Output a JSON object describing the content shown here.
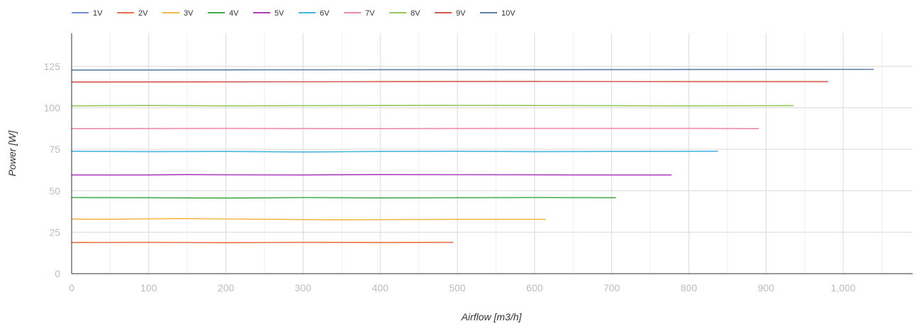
{
  "chart_data": {
    "type": "line",
    "xlabel": "Airflow [m3/h]",
    "ylabel": "Power [W]",
    "xlim": [
      0,
      1090
    ],
    "ylim": [
      0,
      145
    ],
    "x_ticks": [
      0,
      100,
      200,
      300,
      400,
      500,
      600,
      700,
      800,
      900,
      1000
    ],
    "x_tick_labels": [
      "0",
      "100",
      "200",
      "300",
      "400",
      "500",
      "600",
      "700",
      "800",
      "900",
      "1,000"
    ],
    "y_ticks": [
      0,
      25,
      50,
      75,
      100,
      125
    ],
    "y_tick_labels": [
      "0",
      "25",
      "50",
      "75",
      "100",
      "125"
    ],
    "x_minor_step": 50,
    "grid": true,
    "legend_position": "top-left",
    "series": [
      {
        "name": "1V",
        "color": "#6f8fd6",
        "x": [],
        "y": []
      },
      {
        "name": "2V",
        "color": "#e8714a",
        "x": [
          0,
          100,
          200,
          300,
          400,
          494
        ],
        "y": [
          18.8,
          18.9,
          18.7,
          18.9,
          18.8,
          18.9
        ]
      },
      {
        "name": "3V",
        "color": "#f7b84b",
        "x": [
          0,
          50,
          100,
          150,
          200,
          250,
          300,
          350,
          400,
          500,
          614
        ],
        "y": [
          32.9,
          32.8,
          33.1,
          33.2,
          33.0,
          32.8,
          32.6,
          32.5,
          32.6,
          32.7,
          32.7
        ]
      },
      {
        "name": "4V",
        "color": "#46ab4a",
        "x": [
          0,
          100,
          200,
          300,
          400,
          500,
          600,
          705
        ],
        "y": [
          45.9,
          45.8,
          45.6,
          45.9,
          45.7,
          45.8,
          45.9,
          45.8
        ]
      },
      {
        "name": "5V",
        "color": "#ad3fbf",
        "x": [
          0,
          100,
          150,
          200,
          300,
          400,
          500,
          600,
          700,
          777
        ],
        "y": [
          59.5,
          59.5,
          59.8,
          59.6,
          59.5,
          59.8,
          59.7,
          59.6,
          59.5,
          59.5
        ]
      },
      {
        "name": "6V",
        "color": "#49b5e3",
        "x": [
          0,
          100,
          200,
          300,
          400,
          500,
          600,
          700,
          837
        ],
        "y": [
          73.8,
          73.6,
          73.7,
          73.4,
          73.7,
          73.8,
          73.6,
          73.7,
          73.8
        ]
      },
      {
        "name": "7V",
        "color": "#ee8aa6",
        "x": [
          0,
          200,
          400,
          600,
          800,
          890
        ],
        "y": [
          87.5,
          87.6,
          87.5,
          87.6,
          87.6,
          87.5
        ]
      },
      {
        "name": "8V",
        "color": "#96c65a",
        "x": [
          0,
          100,
          200,
          300,
          400,
          500,
          600,
          700,
          800,
          935
        ],
        "y": [
          101.2,
          101.4,
          101.2,
          101.3,
          101.4,
          101.5,
          101.4,
          101.3,
          101.2,
          101.3
        ]
      },
      {
        "name": "9V",
        "color": "#d3584d",
        "x": [
          0,
          200,
          400,
          600,
          800,
          980
        ],
        "y": [
          115.6,
          115.7,
          115.8,
          115.9,
          115.8,
          115.8
        ]
      },
      {
        "name": "10V",
        "color": "#5d7fa9",
        "x": [
          0,
          200,
          400,
          600,
          800,
          1039
        ],
        "y": [
          122.8,
          122.9,
          123.0,
          123.0,
          123.1,
          123.2
        ]
      }
    ]
  }
}
